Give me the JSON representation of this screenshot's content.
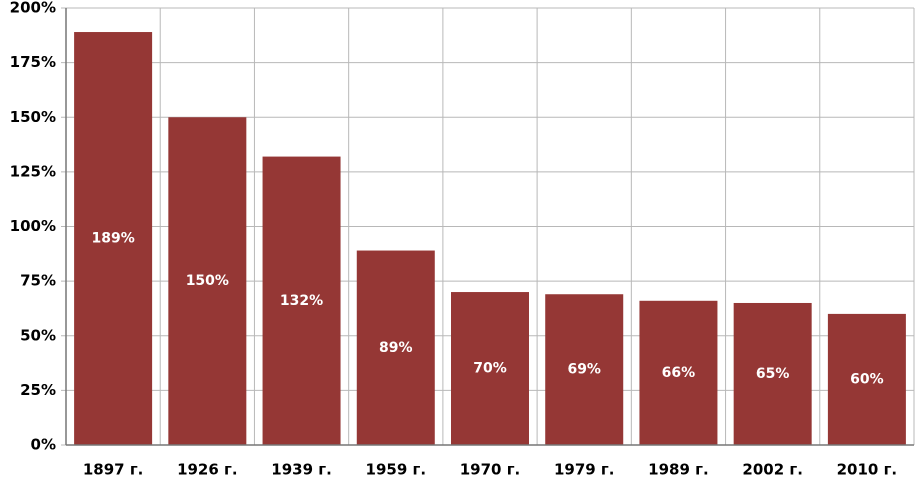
{
  "chart_data": {
    "type": "bar",
    "categories": [
      "1897 г.",
      "1926 г.",
      "1939 г.",
      "1959 г.",
      "1970 г.",
      "1979 г.",
      "1989 г.",
      "2002 г.",
      "2010 г."
    ],
    "values": [
      189,
      150,
      132,
      89,
      70,
      69,
      66,
      65,
      60
    ],
    "value_labels": [
      "189%",
      "150%",
      "132%",
      "89%",
      "70%",
      "69%",
      "66%",
      "65%",
      "60%"
    ],
    "color": "#953735",
    "ylim": [
      0,
      200
    ],
    "yticks": [
      {
        "value": 0,
        "label": "0%"
      },
      {
        "value": 25,
        "label": "25%"
      },
      {
        "value": 50,
        "label": "50%"
      },
      {
        "value": 75,
        "label": "75%"
      },
      {
        "value": 100,
        "label": "100%"
      },
      {
        "value": 125,
        "label": "125%"
      },
      {
        "value": 150,
        "label": "150%"
      },
      {
        "value": 175,
        "label": "175%"
      },
      {
        "value": 200,
        "label": "200%"
      }
    ],
    "grid": true
  }
}
